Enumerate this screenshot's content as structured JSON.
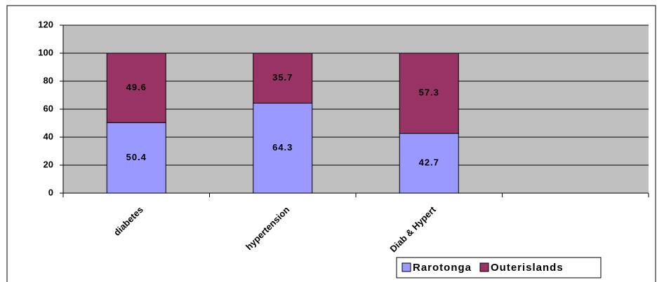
{
  "chart_data": {
    "type": "stacked_bar",
    "categories": [
      "diabetes",
      "hypertension",
      "Diab & Hypert",
      null
    ],
    "series": [
      {
        "name": "Rarotonga",
        "color": "#9999ff",
        "values": [
          50.4,
          64.3,
          42.7,
          null
        ]
      },
      {
        "name": "Outerislands",
        "color": "#993366",
        "values": [
          49.6,
          35.7,
          57.3,
          null
        ]
      }
    ],
    "ylim": [
      0,
      120
    ],
    "yticks": [
      0,
      20,
      40,
      60,
      80,
      100,
      120
    ],
    "grid": true,
    "legend": "bottom-right"
  }
}
